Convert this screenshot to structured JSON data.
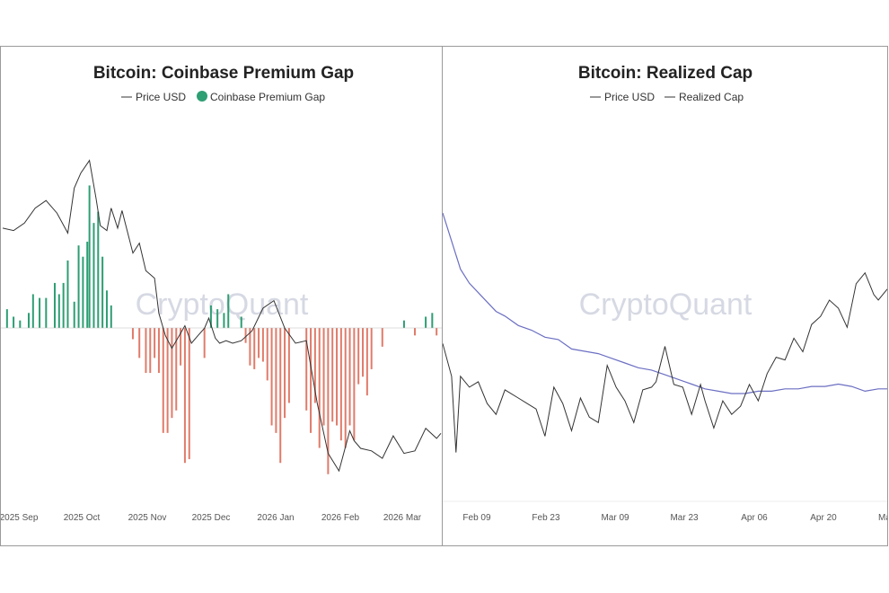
{
  "watermark": "CryptoQuant",
  "colors": {
    "price_line": "#333333",
    "positive": "#2e9e73",
    "negative": "#e07b6a",
    "realized": "#6b6fc2"
  },
  "chart_data": [
    {
      "type": "bar",
      "title": "Bitcoin: Coinbase Premium Gap",
      "legend": [
        {
          "label": "Price USD",
          "marker": "line"
        },
        {
          "label": "Coinbase Premium Gap",
          "marker": "dot"
        }
      ],
      "legend_placement": "top-center",
      "x_tick_labels": [
        "2025 Sep",
        "2025 Oct",
        "2025 Nov",
        "2025 Dec",
        "2026 Jan",
        "2026 Feb",
        "2026 Mar"
      ],
      "x_range": [
        0,
        202
      ],
      "series": [
        {
          "name": "Price USD",
          "type": "line",
          "y_range": [
            60000,
            130000
          ],
          "x": [
            0,
            5,
            10,
            15,
            20,
            25,
            30,
            33,
            36,
            40,
            43,
            45,
            48,
            50,
            53,
            55,
            60,
            63,
            66,
            70,
            72,
            75,
            78,
            80,
            84,
            87,
            90,
            93,
            95,
            98,
            100,
            103,
            106,
            110,
            115,
            120,
            125,
            130,
            135,
            140,
            145,
            150,
            155,
            160,
            162,
            165,
            170,
            175,
            180,
            185,
            190,
            195,
            200,
            202
          ],
          "y": [
            111000,
            110500,
            112000,
            115000,
            116500,
            114000,
            110000,
            119000,
            122000,
            124500,
            117000,
            111500,
            110500,
            115000,
            111000,
            114500,
            106000,
            108000,
            102500,
            101000,
            94000,
            89500,
            87000,
            88500,
            91500,
            88000,
            89500,
            91000,
            93000,
            89000,
            88000,
            88500,
            88000,
            88500,
            90500,
            95000,
            96500,
            91000,
            88000,
            88500,
            76000,
            66000,
            62500,
            70500,
            68500,
            67000,
            66500,
            65000,
            69500,
            66000,
            66500,
            71000,
            69000,
            70000
          ]
        },
        {
          "name": "Coinbase Premium Gap",
          "type": "bar",
          "y_range": [
            -220,
            260
          ],
          "x": [
            2,
            5,
            8,
            12,
            14,
            17,
            20,
            24,
            26,
            28,
            30,
            33,
            35,
            37,
            39,
            40,
            42,
            44,
            46,
            48,
            50,
            60,
            63,
            66,
            68,
            70,
            72,
            74,
            76,
            78,
            80,
            82,
            84,
            86,
            93,
            96,
            99,
            102,
            104,
            110,
            112,
            114,
            116,
            118,
            120,
            122,
            124,
            126,
            128,
            130,
            132,
            140,
            142,
            144,
            146,
            148,
            150,
            152,
            154,
            156,
            158,
            160,
            162,
            164,
            166,
            168,
            170,
            175,
            185,
            190,
            195,
            198,
            200
          ],
          "values": [
            25,
            15,
            10,
            20,
            45,
            40,
            40,
            60,
            45,
            60,
            90,
            35,
            110,
            95,
            115,
            190,
            140,
            155,
            95,
            50,
            30,
            -15,
            -40,
            -60,
            -60,
            -40,
            -60,
            -140,
            -140,
            -120,
            -110,
            -50,
            -180,
            -175,
            -40,
            30,
            25,
            20,
            45,
            15,
            -20,
            -50,
            -55,
            -40,
            -45,
            -70,
            -130,
            -140,
            -180,
            -120,
            -100,
            -110,
            -140,
            -100,
            -160,
            -130,
            -195,
            -125,
            -130,
            -150,
            -160,
            -130,
            -150,
            -75,
            -65,
            -90,
            -55,
            -25,
            10,
            -10,
            15,
            20,
            -10
          ]
        }
      ]
    },
    {
      "type": "line",
      "title": "Bitcoin: Realized Cap",
      "legend": [
        {
          "label": "Price USD",
          "marker": "line"
        },
        {
          "label": "Realized Cap",
          "marker": "line"
        }
      ],
      "legend_placement": "top-center",
      "x_tick_labels": [
        "Feb 09",
        "Feb 23",
        "Mar 09",
        "Mar 23",
        "Apr 06",
        "Apr 20",
        "Ma"
      ],
      "x_range": [
        0,
        100
      ],
      "series": [
        {
          "name": "Price USD",
          "y_range": [
            0,
            100
          ],
          "x": [
            0,
            2,
            3,
            4,
            6,
            8,
            10,
            12,
            14,
            17,
            19,
            21,
            23,
            25,
            27,
            29,
            31,
            33,
            35,
            37,
            39,
            41,
            43,
            45,
            47,
            48,
            50,
            52,
            54,
            56,
            58,
            59,
            61,
            63,
            65,
            67,
            69,
            71,
            73,
            75,
            77,
            79,
            81,
            83,
            85,
            87,
            89,
            91,
            93,
            95,
            97,
            98,
            100
          ],
          "y": [
            52,
            40,
            12,
            40,
            36,
            38,
            30,
            26,
            35,
            32,
            30,
            28,
            18,
            36,
            30,
            20,
            32,
            25,
            23,
            44,
            36,
            31,
            23,
            35,
            36,
            38,
            51,
            37,
            36,
            26,
            37,
            31,
            21,
            31,
            26,
            29,
            37,
            31,
            41,
            47,
            46,
            54,
            49,
            59,
            62,
            68,
            65,
            58,
            74,
            78,
            70,
            68,
            72
          ]
        },
        {
          "name": "Realized Cap",
          "y_range": [
            0,
            100
          ],
          "x": [
            0,
            2,
            4,
            6,
            8,
            10,
            12,
            14,
            17,
            20,
            23,
            26,
            29,
            32,
            35,
            38,
            41,
            44,
            47,
            50,
            53,
            56,
            59,
            62,
            65,
            68,
            71,
            74,
            77,
            80,
            83,
            86,
            89,
            92,
            95,
            98,
            100
          ],
          "y": [
            100,
            88,
            76,
            70,
            66,
            62,
            58,
            56,
            52,
            50,
            47,
            46,
            42,
            41,
            40,
            38,
            36,
            34,
            33,
            31,
            29,
            27,
            25,
            24,
            23,
            23,
            24,
            24,
            25,
            25,
            26,
            26,
            27,
            26,
            24,
            25,
            25
          ]
        }
      ]
    }
  ]
}
